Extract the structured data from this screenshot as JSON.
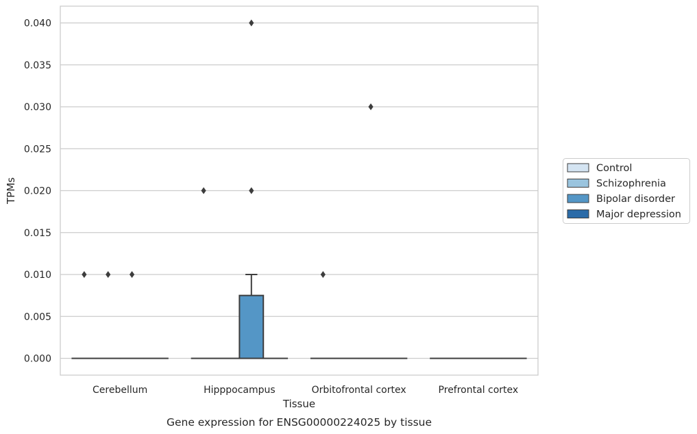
{
  "chart_data": {
    "type": "box",
    "title": "",
    "caption": "Gene expression for ENSG00000224025 by tissue",
    "xlabel": "Tissue",
    "ylabel": "TPMs",
    "ylim": [
      -0.002,
      0.042
    ],
    "yticks": [
      "0.000",
      "0.005",
      "0.010",
      "0.015",
      "0.020",
      "0.025",
      "0.030",
      "0.035",
      "0.040"
    ],
    "ytick_values": [
      0,
      0.005,
      0.01,
      0.015,
      0.02,
      0.025,
      0.03,
      0.035,
      0.04
    ],
    "grid": "horizontal",
    "legend_position": "right",
    "categories": [
      "Cerebellum",
      "Hipppocampus",
      "Orbitofrontal cortex",
      "Prefrontal cortex"
    ],
    "series": [
      {
        "name": "Control",
        "color": "#d4e4f2",
        "boxes": [
          {
            "q1": 0,
            "median": 0,
            "q3": 0,
            "whisker_low": 0,
            "whisker_high": 0,
            "outliers": [
              0.01
            ]
          },
          {
            "q1": 0,
            "median": 0,
            "q3": 0,
            "whisker_low": 0,
            "whisker_high": 0,
            "outliers": [
              0.02
            ]
          },
          {
            "q1": 0,
            "median": 0,
            "q3": 0,
            "whisker_low": 0,
            "whisker_high": 0,
            "outliers": [
              0.01
            ]
          },
          {
            "q1": 0,
            "median": 0,
            "q3": 0,
            "whisker_low": 0,
            "whisker_high": 0,
            "outliers": []
          }
        ]
      },
      {
        "name": "Schizophrenia",
        "color": "#9ac4de",
        "boxes": [
          {
            "q1": 0,
            "median": 0,
            "q3": 0,
            "whisker_low": 0,
            "whisker_high": 0,
            "outliers": [
              0.01
            ]
          },
          {
            "q1": 0,
            "median": 0,
            "q3": 0,
            "whisker_low": 0,
            "whisker_high": 0,
            "outliers": []
          },
          {
            "q1": 0,
            "median": 0,
            "q3": 0,
            "whisker_low": 0,
            "whisker_high": 0,
            "outliers": []
          },
          {
            "q1": 0,
            "median": 0,
            "q3": 0,
            "whisker_low": 0,
            "whisker_high": 0,
            "outliers": []
          }
        ]
      },
      {
        "name": "Bipolar disorder",
        "color": "#5496c6",
        "boxes": [
          {
            "q1": 0,
            "median": 0,
            "q3": 0,
            "whisker_low": 0,
            "whisker_high": 0,
            "outliers": [
              0.01
            ]
          },
          {
            "q1": 0,
            "median": 0,
            "q3": 0.0075,
            "whisker_low": 0,
            "whisker_high": 0.01,
            "outliers": [
              0.02,
              0.04
            ]
          },
          {
            "q1": 0,
            "median": 0,
            "q3": 0,
            "whisker_low": 0,
            "whisker_high": 0,
            "outliers": [
              0.03
            ]
          },
          {
            "q1": 0,
            "median": 0,
            "q3": 0,
            "whisker_low": 0,
            "whisker_high": 0,
            "outliers": []
          }
        ]
      },
      {
        "name": "Major depression",
        "color": "#2b6ba8",
        "boxes": [
          {
            "q1": 0,
            "median": 0,
            "q3": 0,
            "whisker_low": 0,
            "whisker_high": 0,
            "outliers": []
          },
          {
            "q1": 0,
            "median": 0,
            "q3": 0,
            "whisker_low": 0,
            "whisker_high": 0,
            "outliers": []
          },
          {
            "q1": 0,
            "median": 0,
            "q3": 0,
            "whisker_low": 0,
            "whisker_high": 0,
            "outliers": []
          },
          {
            "q1": 0,
            "median": 0,
            "q3": 0,
            "whisker_low": 0,
            "whisker_high": 0,
            "outliers": []
          }
        ]
      }
    ]
  }
}
